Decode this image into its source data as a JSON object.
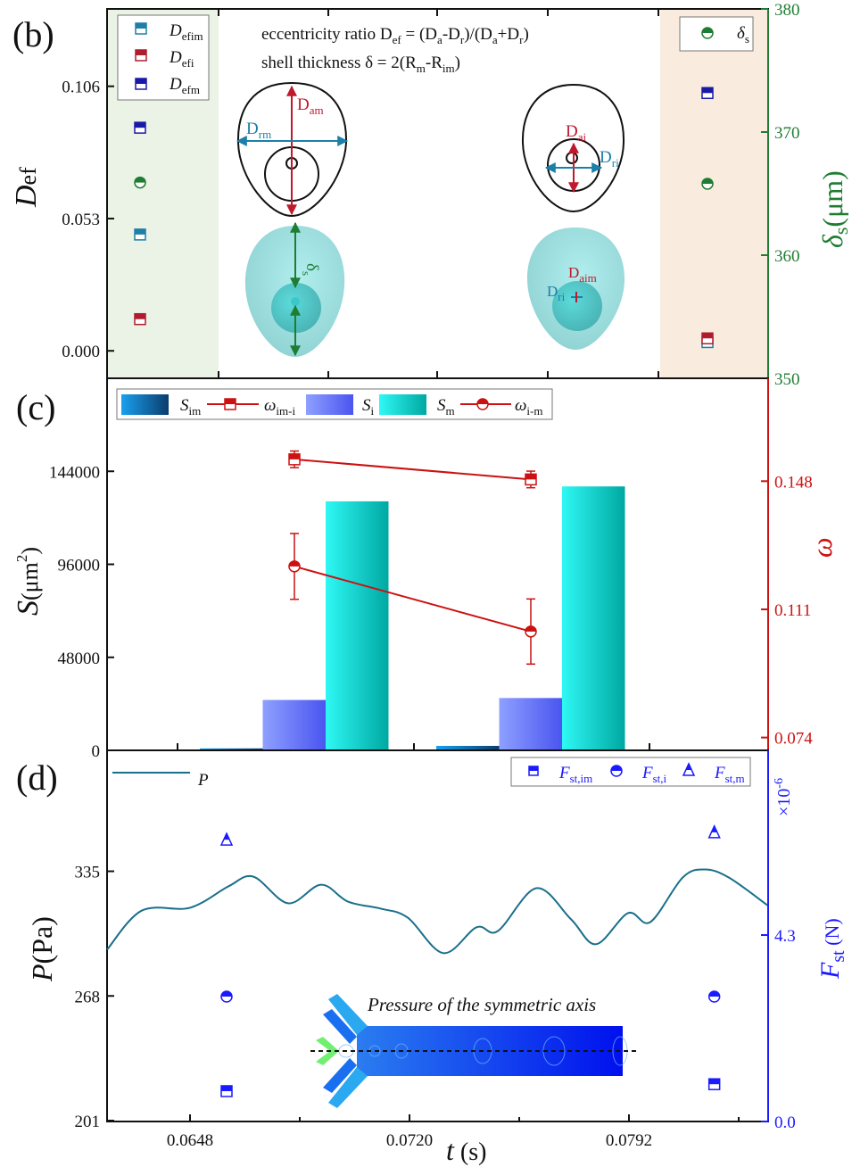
{
  "panels": {
    "b": "(b)",
    "c": "(c)",
    "d": "(d)"
  },
  "colors": {
    "teal": "#1f7fa6",
    "red": "#b01c2e",
    "navy": "#1a1aa8",
    "green": "#1e7d32",
    "omega": "#cc1111",
    "pressure": "#1a6f8a",
    "force": "#1a1aff",
    "panel_b_left_bg": "#eaf3e6",
    "panel_b_right_bg": "#f9ecdf"
  },
  "panel_b_text": {
    "formula1_pre": "eccentricity ratio D",
    "formula1_sub": "ef",
    "formula1_a": " = (D",
    "formula1_a_sub": "a",
    "formula1_b": "-D",
    "formula1_b_sub": "r",
    "formula1_c": ")/(D",
    "formula1_c_sub": "a",
    "formula1_d": "+D",
    "formula1_d_sub": "r",
    "formula1_e": ")",
    "formula2_pre": "shell thickness δ = 2(R",
    "formula2_sub1": "m",
    "formula2_mid": "-R",
    "formula2_sub2": "im",
    "formula2_end": ")",
    "label_dam": "D",
    "label_dam_sub": "am",
    "label_drm": "D",
    "label_drm_sub": "rm",
    "label_ds": "δ",
    "label_ds_sub": "s",
    "label_dai": "D",
    "label_dai_sub": "ai",
    "label_dri": "D",
    "label_dri_sub": "ri",
    "label_daim": "D",
    "label_daim_sub": "aim",
    "label_dri2": "D",
    "label_dri2_sub": "ri"
  },
  "panel_d_inset": {
    "title": "Pressure of the symmetric axis"
  },
  "chart_data": [
    {
      "panel": "(b)",
      "type": "scatter",
      "ylabel": "D",
      "ylabel_sub": "ef",
      "ylim": [
        -0.011,
        0.137
      ],
      "yticks": [
        "0.000",
        "0.053",
        "0.106"
      ],
      "y2label": "δ",
      "y2label_sub": "s",
      "y2label_unit": "(μm)",
      "y2lim": [
        350,
        380
      ],
      "y2ticks": [
        "350",
        "360",
        "370",
        "380"
      ],
      "series": [
        {
          "name": "D_efim",
          "legend_main": "D",
          "legend_sub": "efim",
          "color": "#1f7fa6",
          "marker": "half-filled-square",
          "axis": "left",
          "values": [
            0.0466,
            0.0035
          ]
        },
        {
          "name": "D_efi",
          "legend_main": "D",
          "legend_sub": "efi",
          "color": "#b01c2e",
          "marker": "half-filled-square",
          "axis": "left",
          "values": [
            0.0127,
            0.005
          ]
        },
        {
          "name": "D_efm",
          "legend_main": "D",
          "legend_sub": "efm",
          "color": "#1a1aa8",
          "marker": "half-filled-square",
          "axis": "left",
          "values": [
            0.0894,
            0.1033
          ]
        },
        {
          "name": "δ_s",
          "legend_main": "δ",
          "legend_sub": "s",
          "color": "#1e7d32",
          "marker": "half-filled-circle",
          "axis": "right",
          "values": [
            365.9,
            365.8
          ]
        }
      ]
    },
    {
      "panel": "(c)",
      "type": "bar",
      "ylabel": "S",
      "ylabel_unit": "(μm",
      "ylabel_sup": "2",
      "ylabel_end": ")",
      "ylim": [
        0,
        192000
      ],
      "yticks": [
        "0",
        "48000",
        "96000",
        "144000"
      ],
      "y2label": "ω",
      "y2lim": [
        0.0703,
        0.1777
      ],
      "y2ticks": [
        "0.074",
        "0.111",
        "0.148"
      ],
      "bar_series": [
        {
          "name": "S_im",
          "legend_main": "S",
          "legend_sub": "im",
          "color_light": "#1aa0f0",
          "color_dark": "#0a3d6b",
          "values": [
            1000,
            2300
          ]
        },
        {
          "name": "S_i",
          "legend_main": "S",
          "legend_sub": "i",
          "color_light": "#8ea0ff",
          "color_dark": "#4a55f0",
          "values": [
            26000,
            27000
          ]
        },
        {
          "name": "S_m",
          "legend_main": "S",
          "legend_sub": "m",
          "color_light": "#2ff8f4",
          "color_dark": "#00a8a2",
          "values": [
            128500,
            136200
          ]
        }
      ],
      "line_series": [
        {
          "name": "ω_im-i",
          "legend_main": "ω",
          "legend_sub": "im-i",
          "color": "#cc1111",
          "marker": "half-filled-square",
          "values": [
            0.1543,
            0.1485
          ],
          "errors": [
            0.0024,
            0.0024
          ]
        },
        {
          "name": "ω_i-m",
          "legend_main": "ω",
          "legend_sub": "i-m",
          "color": "#cc1111",
          "marker": "half-filled-circle",
          "values": [
            0.1234,
            0.1046
          ],
          "errors": [
            0.0095,
            0.0094
          ]
        }
      ]
    },
    {
      "panel": "(d)",
      "type": "line",
      "xlabel": "t",
      "xlabel_unit": " (s)",
      "xlim": [
        0.0621,
        0.0837
      ],
      "xticks": [
        "0.0648",
        "0.0720",
        "0.0792"
      ],
      "ylabel": "P",
      "ylabel_unit": "(Pa)",
      "ylim": [
        201,
        400
      ],
      "yticks": [
        "201",
        "268",
        "335"
      ],
      "y2label": "F",
      "y2label_sub": "st",
      "y2label_unit": " (N)",
      "y2_multiplier": "×10",
      "y2_multiplier_exp": "-6",
      "y2lim": [
        0.0,
        8.56
      ],
      "y2ticks": [
        "0.0",
        "4.3"
      ],
      "line": {
        "name": "P",
        "color": "#1a6f8a",
        "x": [
          0.06208,
          0.06322,
          0.0648,
          0.06606,
          0.06688,
          0.06802,
          0.0691,
          0.06998,
          0.07106,
          0.07194,
          0.07311,
          0.0742,
          0.0749,
          0.07616,
          0.0773,
          0.07812,
          0.07917,
          0.0799,
          0.08096,
          0.08169,
          0.08248,
          0.08374
        ],
        "y": [
          292.9,
          313.9,
          315.4,
          326.9,
          332.1,
          317.8,
          327.8,
          318.7,
          314.9,
          310.1,
          291.0,
          304.9,
          302.9,
          325.9,
          309.2,
          295.8,
          312.5,
          307.7,
          331.6,
          336.0,
          331.6,
          316.8
        ]
      },
      "scatter_series": [
        {
          "name": "F_st,im",
          "legend_main": "F",
          "legend_sub": "st,im",
          "color": "#1a1aff",
          "marker": "half-filled-square",
          "x": [
            0.066,
            0.082
          ],
          "y": [
            0.7,
            0.86
          ]
        },
        {
          "name": "F_st,i",
          "legend_main": "F",
          "legend_sub": "st,i",
          "color": "#1a1aff",
          "marker": "half-filled-circle",
          "x": [
            0.066,
            0.082
          ],
          "y": [
            2.88,
            2.88
          ]
        },
        {
          "name": "F_st,m",
          "legend_main": "F",
          "legend_sub": "st,m",
          "color": "#1a1aff",
          "marker": "half-filled-triangle",
          "x": [
            0.066,
            0.082
          ],
          "y": [
            6.5,
            6.67
          ]
        }
      ]
    }
  ]
}
